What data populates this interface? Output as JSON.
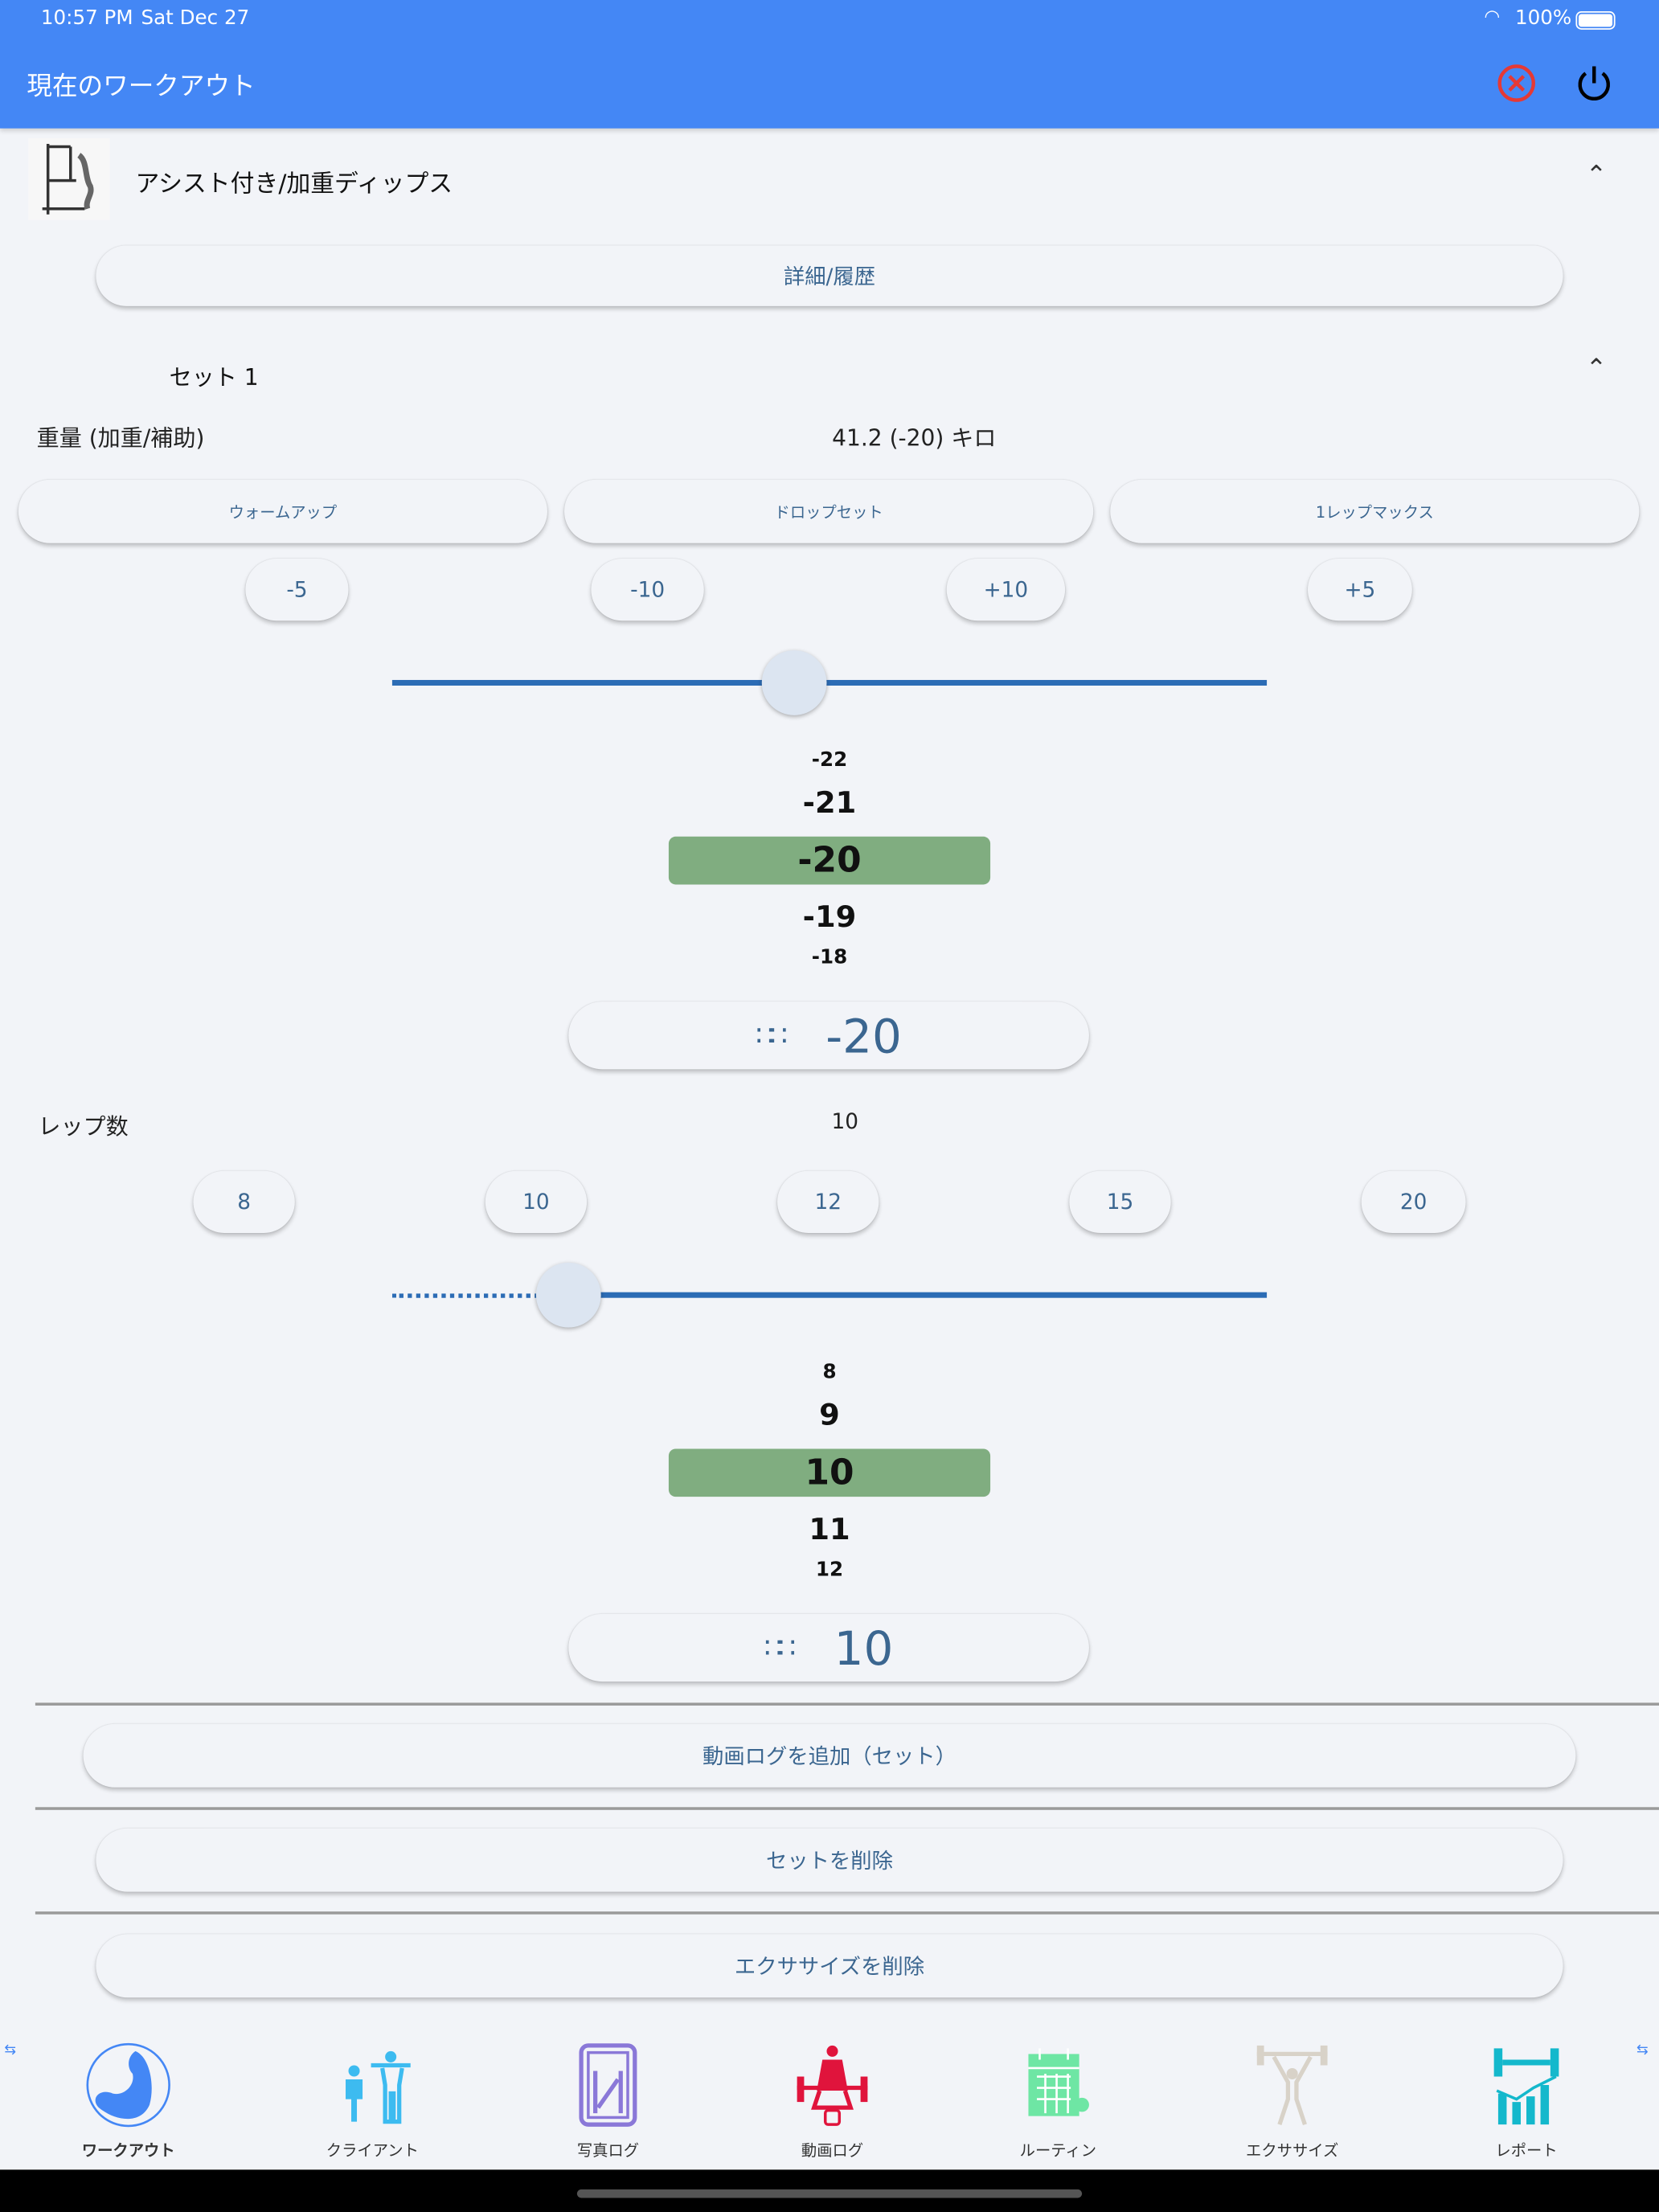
{
  "status_bar": {
    "time": "10:57 PM",
    "date": "Sat Dec 27",
    "battery": "100%"
  },
  "app_bar": {
    "title": "現在のワークアウト",
    "close_icon": "close-circle-icon",
    "power_icon": "power-icon",
    "colors": {
      "bar": "#4487F5",
      "close": "#E53935"
    }
  },
  "exercise": {
    "name": "アシスト付き/加重ディップス",
    "details_button": "詳細/履歴"
  },
  "set": {
    "title": "セット 1",
    "weight": {
      "label": "重量 (加重/補助)",
      "value": "41.2 (-20) キロ",
      "type_buttons": [
        "ウォームアップ",
        "ドロップセット",
        "1レップマックス"
      ],
      "step_buttons": [
        "-5",
        "-10",
        "+10",
        "+5"
      ],
      "slider_value": -20,
      "picker": [
        "-22",
        "-21",
        "-20",
        "-19",
        "-18"
      ],
      "input_value": "-20"
    },
    "reps": {
      "label": "レップ数",
      "value": "10",
      "quick_buttons": [
        "8",
        "10",
        "12",
        "15",
        "20"
      ],
      "slider_value": 10,
      "picker": [
        "8",
        "9",
        "10",
        "11",
        "12"
      ],
      "input_value": "10"
    },
    "add_video_button": "動画ログを追加（セット）",
    "delete_set_button": "セットを削除",
    "delete_exercise_button": "エクササイズを削除"
  },
  "bottom_nav": [
    {
      "label": "ワークアウト",
      "icon": "muscle-arm-icon",
      "color": "#4487F5"
    },
    {
      "label": "クライアント",
      "icon": "trainer-client-icon",
      "color": "#3DBBF0"
    },
    {
      "label": "写真ログ",
      "icon": "photo-mirror-icon",
      "color": "#8A78D8"
    },
    {
      "label": "動画ログ",
      "icon": "weightlifter-video-icon",
      "color": "#E0143C"
    },
    {
      "label": "ルーティン",
      "icon": "calendar-icon",
      "color": "#6EE6A4"
    },
    {
      "label": "エクササイズ",
      "icon": "barbell-overhead-icon",
      "color": "#D8D2C8"
    },
    {
      "label": "レポート",
      "icon": "dumbbell-chart-icon",
      "color": "#14B8CC"
    }
  ]
}
